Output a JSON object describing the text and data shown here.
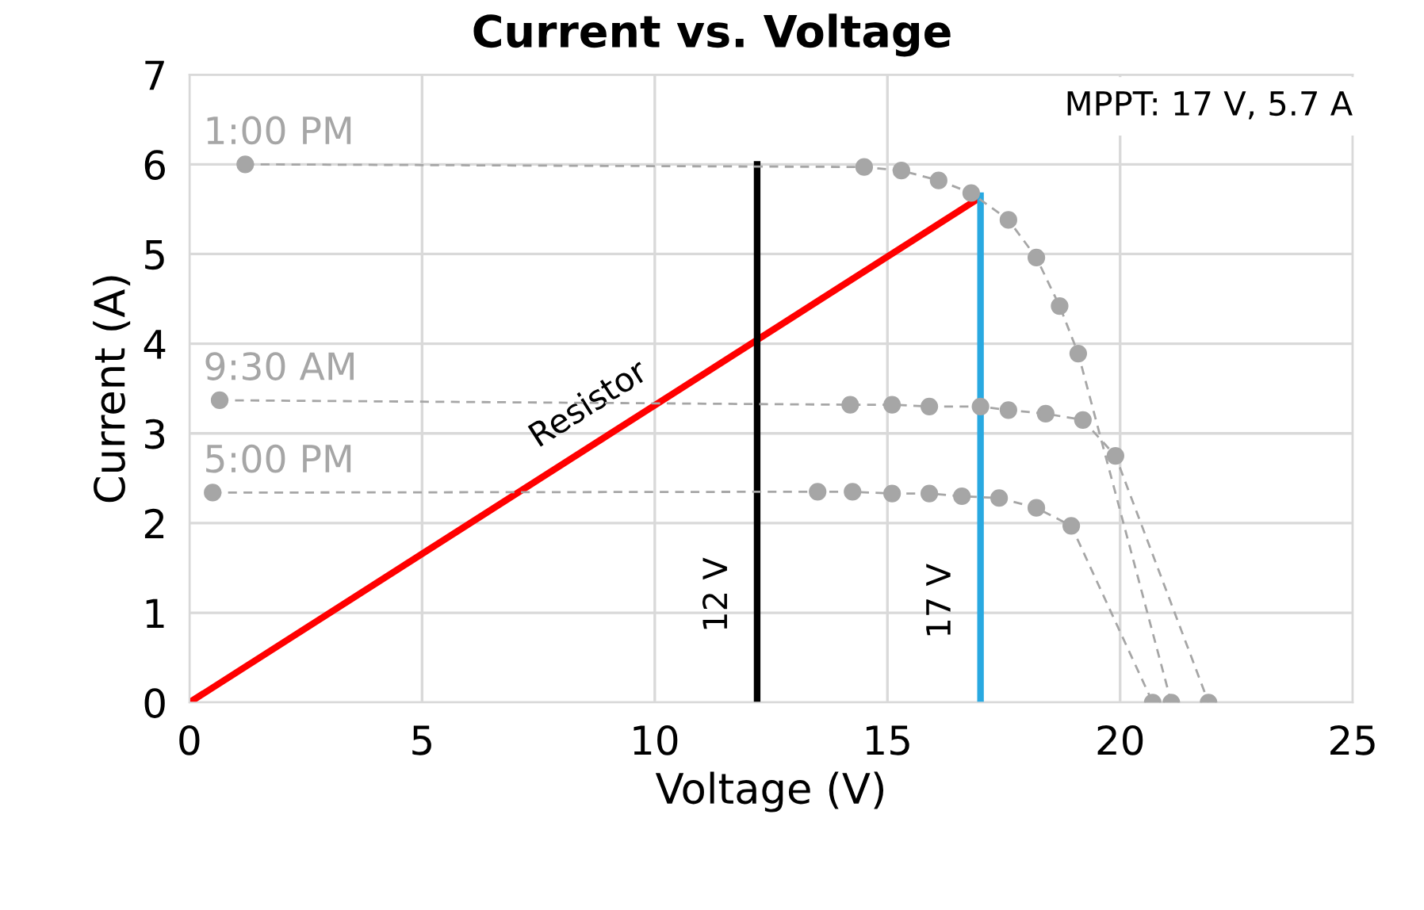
{
  "chart_data": {
    "type": "line",
    "title": "Current vs. Voltage",
    "xlabel": "Voltage (V)",
    "ylabel": "Current (A)",
    "xlim": [
      0,
      25
    ],
    "ylim": [
      0,
      7
    ],
    "xticks": [
      0,
      5,
      10,
      15,
      20,
      25
    ],
    "yticks": [
      0,
      1,
      2,
      3,
      4,
      5,
      6,
      7
    ],
    "grid": true,
    "series": [
      {
        "name": "1:00 PM",
        "color": "#a6a6a6",
        "marker": "circle",
        "line_style": "dashed",
        "x": [
          1.2,
          14.5,
          15.3,
          16.1,
          16.8,
          17.6,
          18.2,
          18.7,
          19.1,
          21.1
        ],
        "values": [
          6.0,
          5.97,
          5.93,
          5.82,
          5.68,
          5.38,
          4.96,
          4.42,
          3.89,
          0
        ]
      },
      {
        "name": "9:30 AM",
        "color": "#a6a6a6",
        "marker": "circle",
        "line_style": "dashed",
        "x": [
          0.65,
          14.2,
          15.1,
          15.9,
          17.0,
          17.6,
          18.4,
          19.2,
          19.9,
          21.9
        ],
        "values": [
          3.37,
          3.32,
          3.32,
          3.3,
          3.3,
          3.26,
          3.22,
          3.15,
          2.75,
          0
        ]
      },
      {
        "name": "5:00 PM",
        "color": "#a6a6a6",
        "marker": "circle",
        "line_style": "dashed",
        "x": [
          0.5,
          13.5,
          14.25,
          15.1,
          15.9,
          16.6,
          17.4,
          18.2,
          18.95,
          20.7
        ],
        "values": [
          2.34,
          2.35,
          2.35,
          2.33,
          2.33,
          2.3,
          2.28,
          2.17,
          1.97,
          0
        ]
      },
      {
        "name": "Resistor",
        "color": "#ff0000",
        "line_style": "solid",
        "x": [
          0,
          16.9
        ],
        "values": [
          0,
          5.6
        ]
      },
      {
        "name": "12 V",
        "color": "#000000",
        "line_style": "solid",
        "x": [
          12.2,
          12.2
        ],
        "values": [
          0,
          6
        ]
      },
      {
        "name": "17 V",
        "color": "#29a9e1",
        "line_style": "solid",
        "x": [
          17,
          17
        ],
        "values": [
          0,
          5.65
        ]
      }
    ],
    "annotations": [
      "MPPT: 17 V, 5.7 A"
    ]
  }
}
